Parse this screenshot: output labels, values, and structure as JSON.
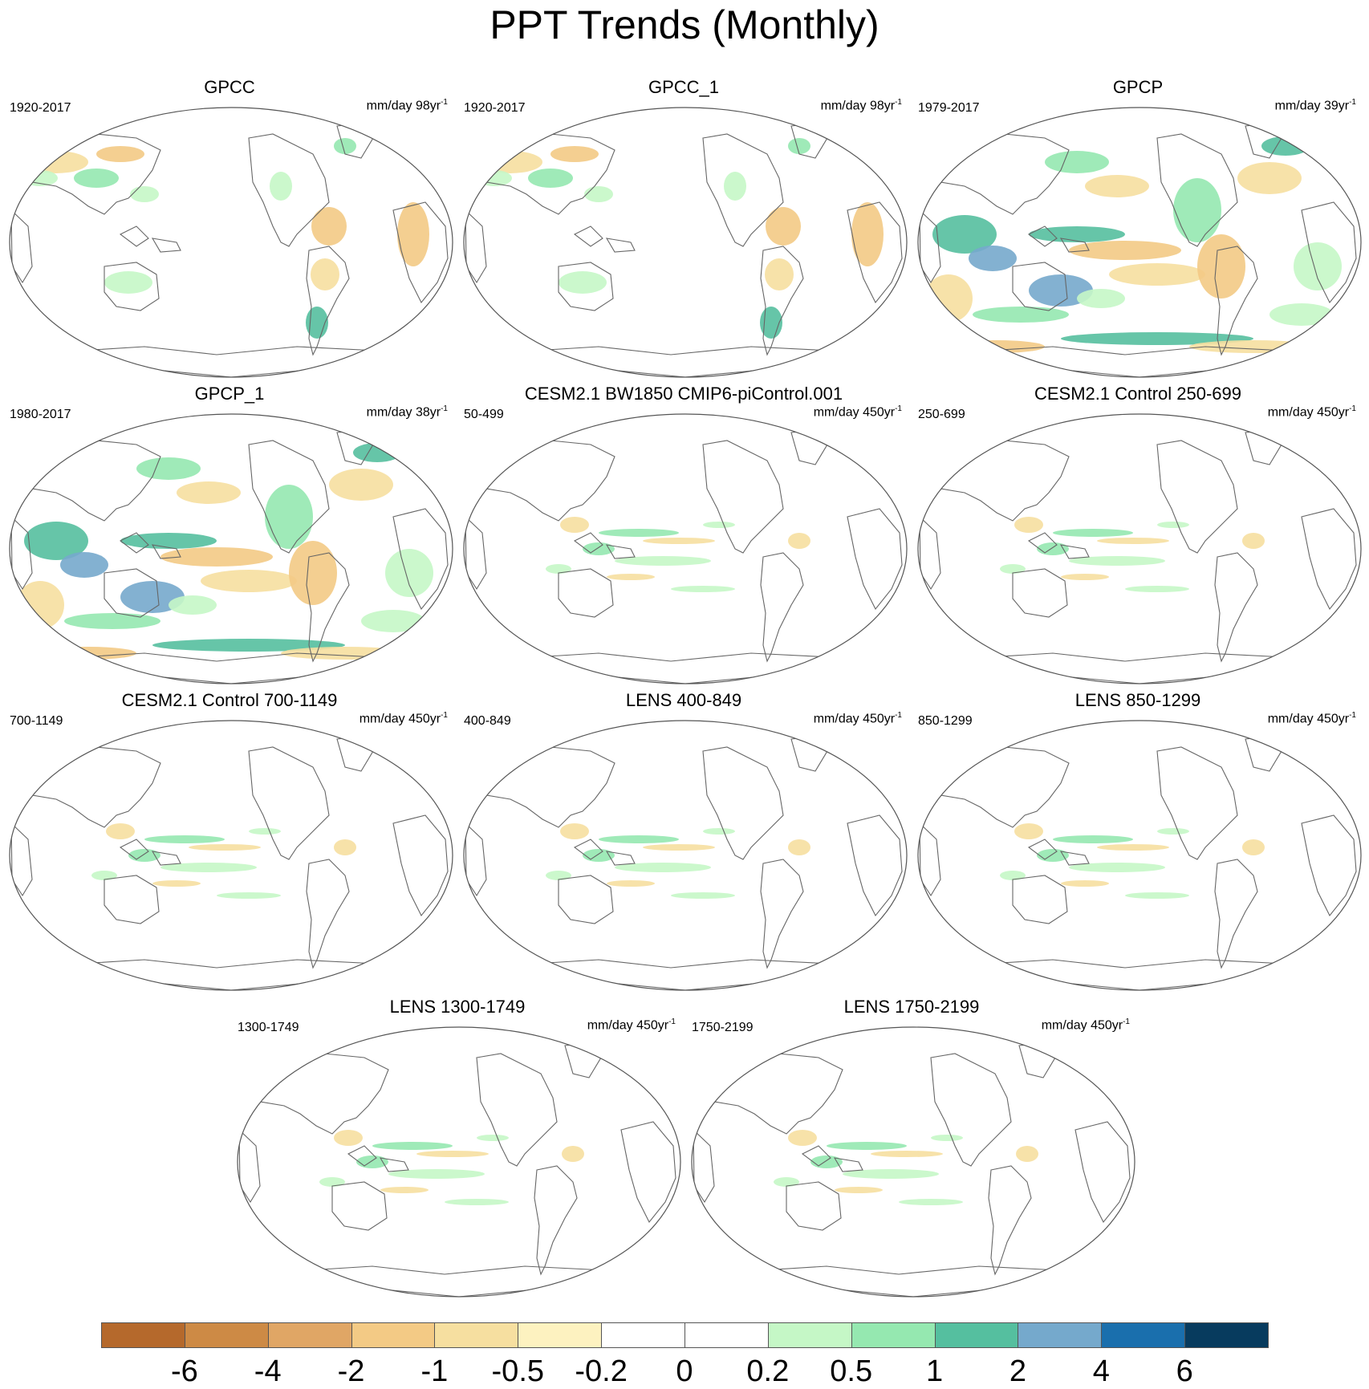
{
  "title": "PPT Trends (Monthly)",
  "panels": [
    {
      "title": "GPCC",
      "period": "1920-2017",
      "units_base": "mm/day 98yr",
      "units_exp": "-1",
      "pattern": "obs_land"
    },
    {
      "title": "GPCC_1",
      "period": "1920-2017",
      "units_base": "mm/day 98yr",
      "units_exp": "-1",
      "pattern": "obs_land"
    },
    {
      "title": "GPCP",
      "period": "1979-2017",
      "units_base": "mm/day 39yr",
      "units_exp": "-1",
      "pattern": "obs_full"
    },
    {
      "title": "GPCP_1",
      "period": "1980-2017",
      "units_base": "mm/day 38yr",
      "units_exp": "-1",
      "pattern": "obs_full"
    },
    {
      "title": "CESM2.1 BW1850 CMIP6-piControl.001",
      "period": "50-499",
      "units_base": "mm/day 450yr",
      "units_exp": "-1",
      "pattern": "model"
    },
    {
      "title": "CESM2.1 Control 250-699",
      "period": "250-699",
      "units_base": "mm/day 450yr",
      "units_exp": "-1",
      "pattern": "model"
    },
    {
      "title": "CESM2.1 Control 700-1149",
      "period": "700-1149",
      "units_base": "mm/day 450yr",
      "units_exp": "-1",
      "pattern": "model"
    },
    {
      "title": "LENS 400-849",
      "period": "400-849",
      "units_base": "mm/day 450yr",
      "units_exp": "-1",
      "pattern": "model"
    },
    {
      "title": "LENS 850-1299",
      "period": "850-1299",
      "units_base": "mm/day 450yr",
      "units_exp": "-1",
      "pattern": "model"
    },
    {
      "title": "LENS 1300-1749",
      "period": "1300-1749",
      "units_base": "mm/day 450yr",
      "units_exp": "-1",
      "pattern": "model"
    },
    {
      "title": "LENS 1750-2199",
      "period": "1750-2199",
      "units_base": "mm/day 450yr",
      "units_exp": "-1",
      "pattern": "model"
    }
  ],
  "colorbar": {
    "colors": [
      "#b5692c",
      "#cd8a45",
      "#e0a665",
      "#f3ca85",
      "#f6dfa0",
      "#fdf2c0",
      "#ffffff",
      "#ffffff",
      "#c5f7c6",
      "#95e8b0",
      "#55bf9f",
      "#75a9cc",
      "#1a6fad",
      "#073b5e"
    ],
    "labels": [
      "-6",
      "-4",
      "-2",
      "-1",
      "-0.5",
      "-0.2",
      "0",
      "0.2",
      "0.5",
      "1",
      "2",
      "4",
      "6"
    ]
  }
}
